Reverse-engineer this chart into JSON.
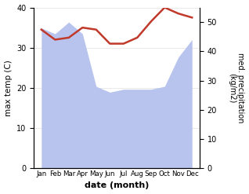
{
  "months": [
    "Jan",
    "Feb",
    "Mar",
    "Apr",
    "May",
    "Jun",
    "Jul",
    "Aug",
    "Sep",
    "Oct",
    "Nov",
    "Dec"
  ],
  "max_temp": [
    34.5,
    32.0,
    32.5,
    35.0,
    34.5,
    31.0,
    31.0,
    32.5,
    36.5,
    40.0,
    38.5,
    37.5
  ],
  "precipitation": [
    48,
    46,
    50,
    46,
    28,
    26,
    27,
    27,
    27,
    28,
    38,
    44
  ],
  "temp_color": "#c0392b",
  "precip_fill_color": "#b8c4ee",
  "ylabel_left": "max temp (C)",
  "ylabel_right": "med. precipitation\n(kg/m2)",
  "xlabel": "date (month)",
  "ylim_left": [
    0,
    40
  ],
  "ylim_right": [
    0,
    55
  ],
  "yticks_left": [
    0,
    10,
    20,
    30,
    40
  ],
  "yticks_right": [
    0,
    10,
    20,
    30,
    40,
    50
  ],
  "temp_linewidth": 1.8
}
